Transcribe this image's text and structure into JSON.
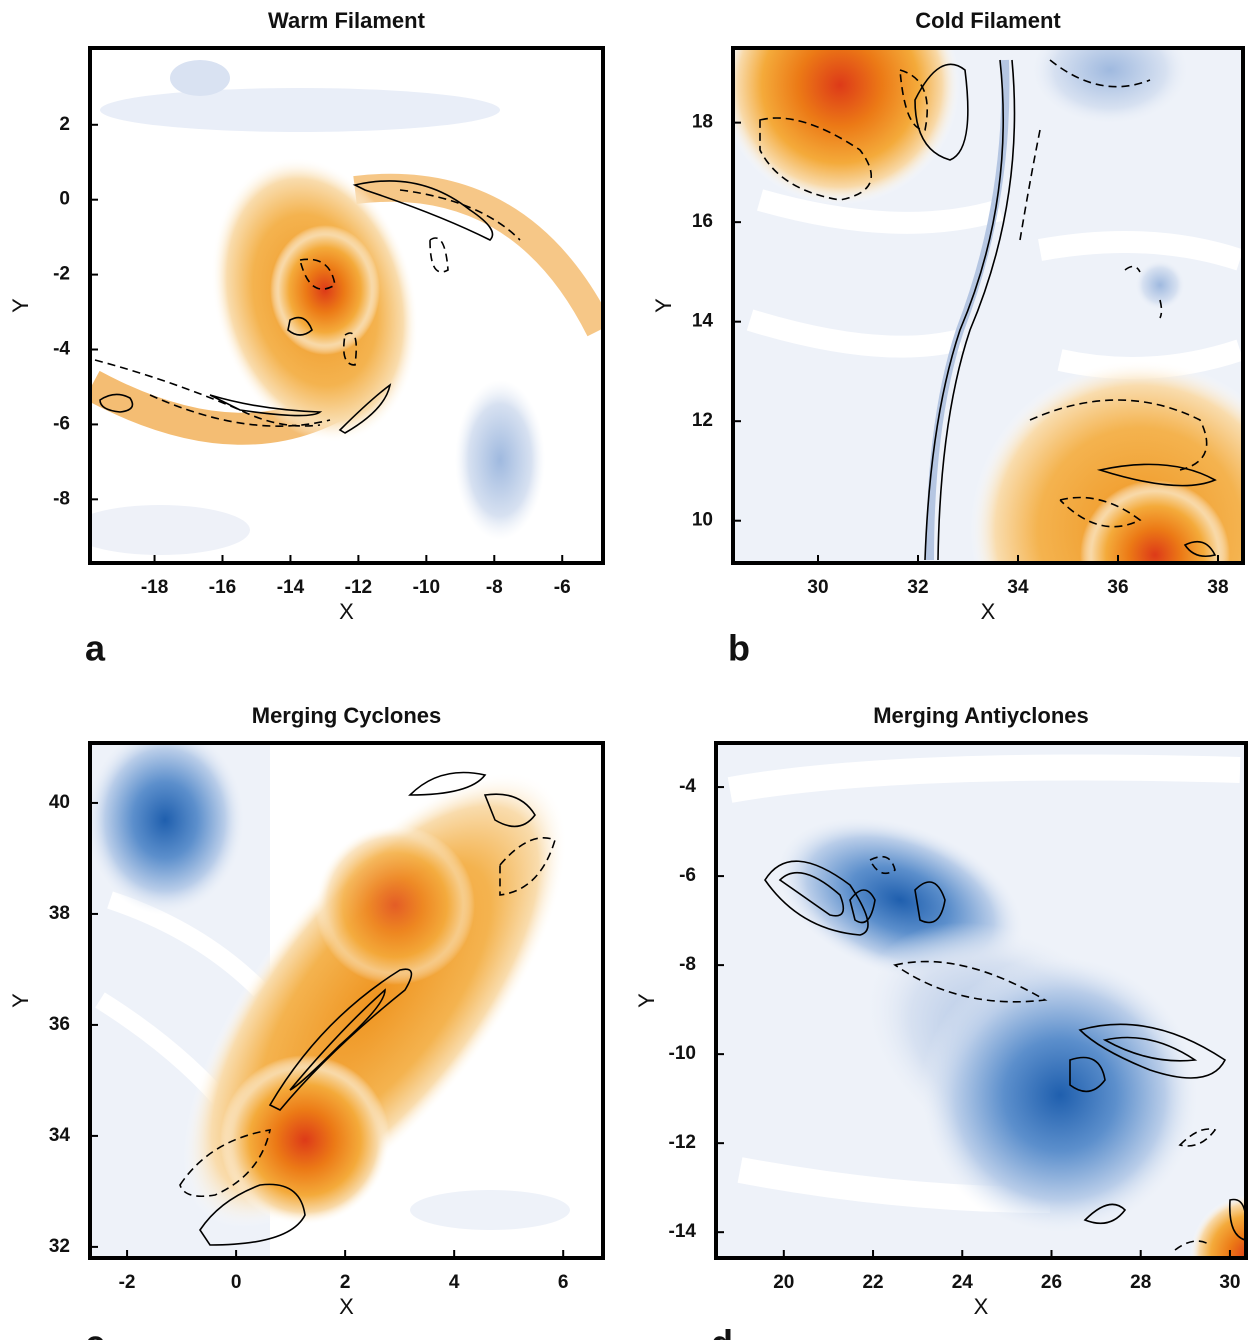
{
  "chart_data": [
    {
      "type": "contour",
      "title": "Warm Filament",
      "xlabel": "X",
      "ylabel": "Y",
      "panel_label": "a",
      "xlim": [
        -19.9,
        -4.8
      ],
      "ylim": [
        -9.7,
        4.05
      ],
      "xticks": [
        -18,
        -16,
        -14,
        -12,
        -10,
        -8,
        -6
      ],
      "yticks": [
        -8,
        -6,
        -4,
        -2,
        0,
        2
      ]
    },
    {
      "type": "contour",
      "title": "Cold Filament",
      "xlabel": "X",
      "ylabel": "Y",
      "panel_label": "b",
      "xlim": [
        28.3,
        38.5
      ],
      "ylim": [
        9.15,
        19.5
      ],
      "xticks": [
        30,
        32,
        34,
        36,
        38
      ],
      "yticks": [
        10,
        12,
        14,
        16,
        18
      ]
    },
    {
      "type": "contour",
      "title": "Merging Cyclones",
      "xlabel": "X",
      "ylabel": "Y",
      "panel_label": "c",
      "xlim": [
        -2.68,
        6.73
      ],
      "ylim": [
        31.8,
        41.08
      ],
      "xticks": [
        -2,
        0,
        2,
        4,
        6
      ],
      "yticks": [
        32,
        34,
        36,
        38,
        40
      ]
    },
    {
      "type": "contour",
      "title": "Merging Antiyclones",
      "xlabel": "X",
      "ylabel": "Y",
      "panel_label": "d",
      "xlim": [
        18.48,
        30.36
      ],
      "ylim": [
        -14.58,
        -3.01
      ],
      "xticks": [
        20,
        22,
        24,
        26,
        28,
        30
      ],
      "yticks": [
        -14,
        -12,
        -10,
        -8,
        -6,
        -4
      ]
    }
  ]
}
